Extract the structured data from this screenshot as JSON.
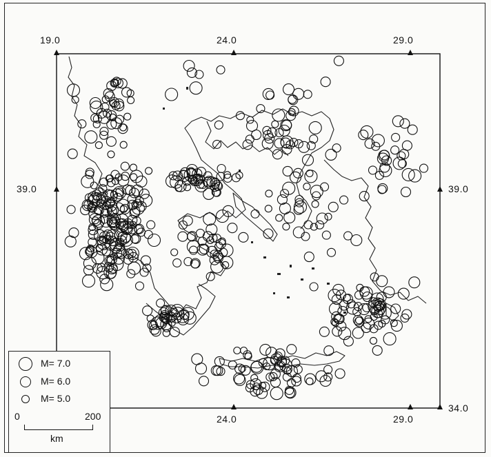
{
  "map": {
    "lon_labels_top": [
      "19.0",
      "24.0",
      "29.0"
    ],
    "lon_labels_bottom": [
      "24.0",
      "29.0"
    ],
    "lat_label_left": "39.0",
    "lat_label_right": [
      "39.0",
      "34.0"
    ]
  },
  "legend": {
    "items": [
      {
        "label": "M= 7.0",
        "magnitude": 7.0
      },
      {
        "label": "M= 6.0",
        "magnitude": 6.0
      },
      {
        "label": "M= 5.0",
        "magnitude": 5.0
      }
    ],
    "scale": {
      "start": "0",
      "end": "200",
      "unit": "km"
    }
  },
  "colors": {
    "ink": "#111111",
    "paper": "#fbfbf9"
  }
}
